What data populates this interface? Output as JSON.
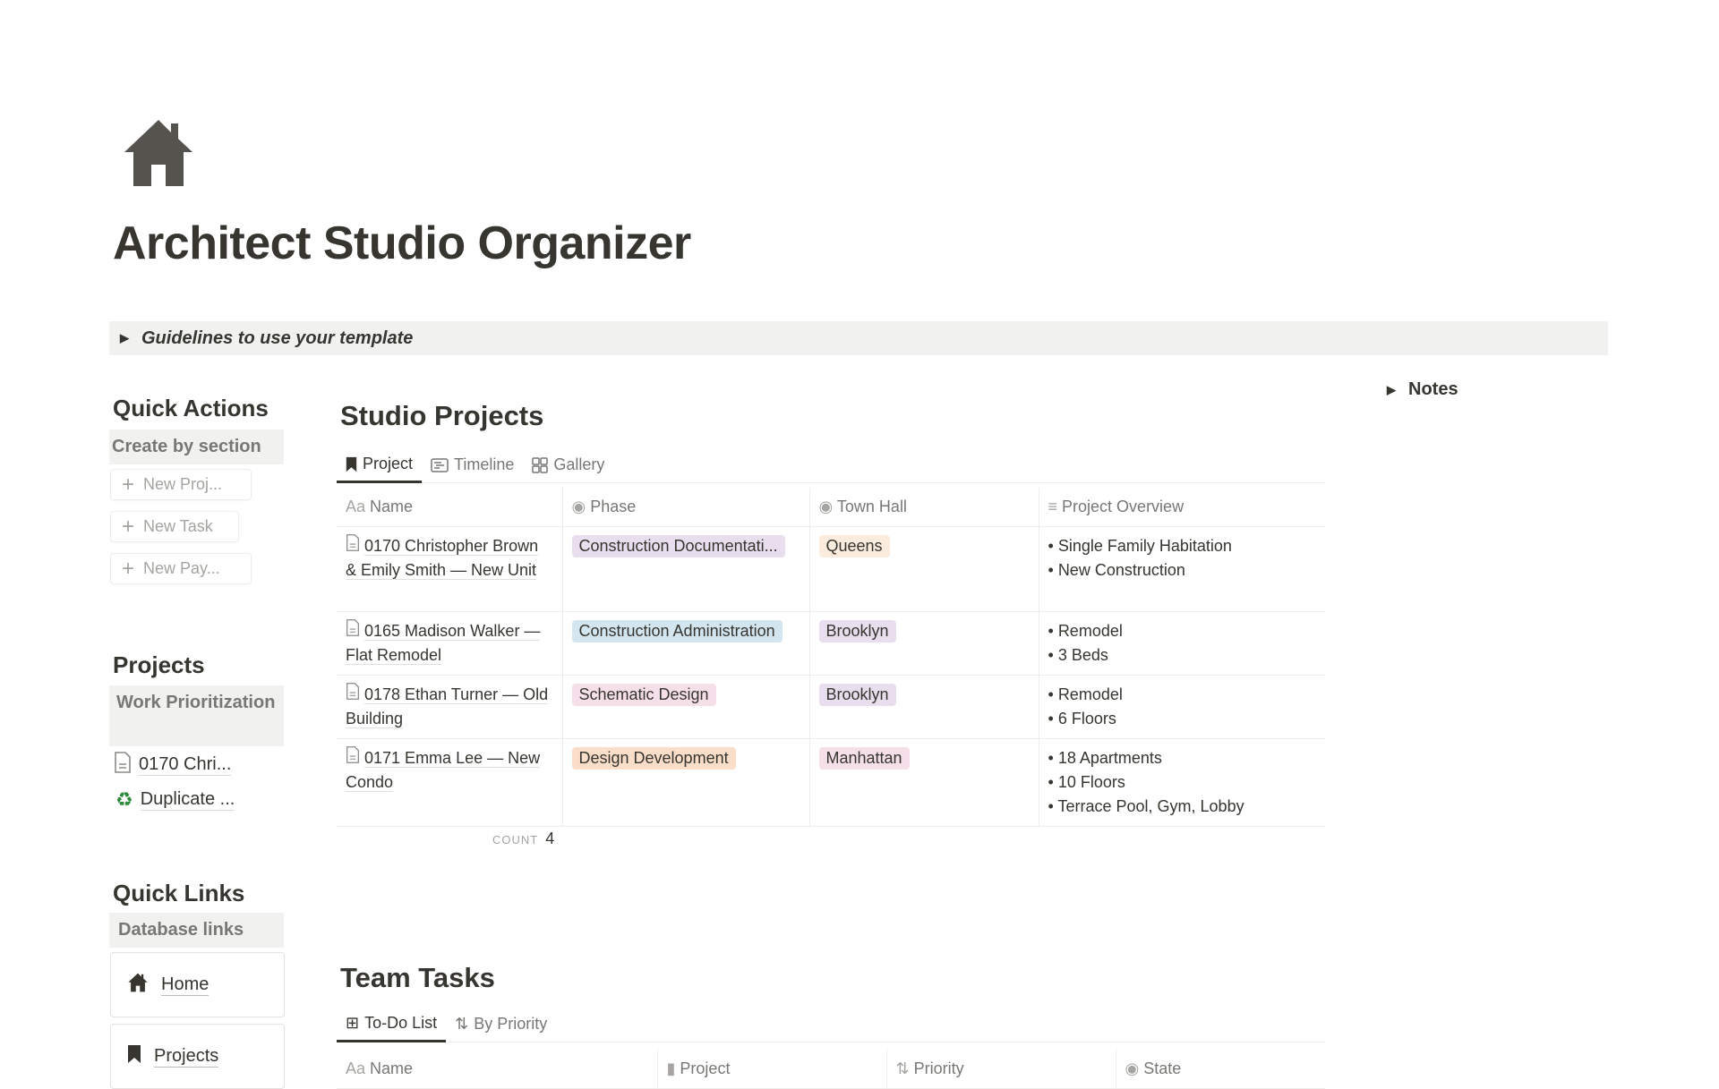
{
  "page": {
    "icon": "house-icon",
    "title": "Architect Studio Organizer",
    "toggle": "Guidelines to use your template"
  },
  "sidebar": {
    "quick_actions": {
      "heading": "Quick Actions",
      "callout": "Create by section",
      "buttons": [
        "New Proj...",
        "New Task",
        "New Pay..."
      ]
    },
    "projects": {
      "heading": "Projects",
      "callout": "Work Prioritization",
      "links": [
        {
          "icon": "document-icon",
          "label": "0170 Chri..."
        },
        {
          "icon": "recycle-icon",
          "label": "Duplicate ..."
        }
      ]
    },
    "quick_links": {
      "heading": "Quick Links",
      "callout": "Database links",
      "cards": [
        {
          "icon": "house-icon",
          "label": "Home"
        },
        {
          "icon": "bookmark-icon",
          "label": "Projects"
        }
      ]
    }
  },
  "studio_projects": {
    "heading": "Studio Projects",
    "tabs": [
      {
        "icon": "bookmark-icon",
        "label": "Project"
      },
      {
        "icon": "timeline-icon",
        "label": "Timeline"
      },
      {
        "icon": "gallery-icon",
        "label": "Gallery"
      }
    ],
    "columns": [
      "Name",
      "Phase",
      "Town Hall",
      "Project Overview"
    ],
    "rows": [
      {
        "name": "0170 Christopher Brown & Emily Smith — New Unit",
        "phase": "Construction Documentati...",
        "phase_color": "#e8deee",
        "town": "Queens",
        "town_color": "#fbecdd",
        "overview": [
          "Single Family Habitation",
          "New Construction"
        ]
      },
      {
        "name": "0165 Madison Walker — Flat Remodel",
        "phase": "Construction Administration",
        "phase_color": "#d3e5ef",
        "town": "Brooklyn",
        "town_color": "#e8deee",
        "overview": [
          "Remodel",
          "3 Beds"
        ]
      },
      {
        "name": "0178 Ethan Turner — Old Building",
        "phase": "Schematic Design",
        "phase_color": "#f5e0e9",
        "town": "Brooklyn",
        "town_color": "#e8deee",
        "overview": [
          "Remodel",
          "6 Floors"
        ]
      },
      {
        "name": "0171 Emma Lee — New Condo",
        "phase": "Design Development",
        "phase_color": "#fadec9",
        "town": "Manhattan",
        "town_color": "#f5e0e9",
        "overview": [
          "18 Apartments",
          "10 Floors",
          "Terrace Pool, Gym, Lobby"
        ]
      }
    ],
    "count_label": "COUNT",
    "count": "4"
  },
  "notes": {
    "label": "Notes"
  },
  "team_tasks": {
    "heading": "Team Tasks",
    "tabs": [
      {
        "icon": "table-icon",
        "label": "To-Do List"
      },
      {
        "icon": "sort-icon",
        "label": "By Priority"
      }
    ],
    "columns": [
      "Name",
      "Project",
      "Priority",
      "State"
    ]
  }
}
